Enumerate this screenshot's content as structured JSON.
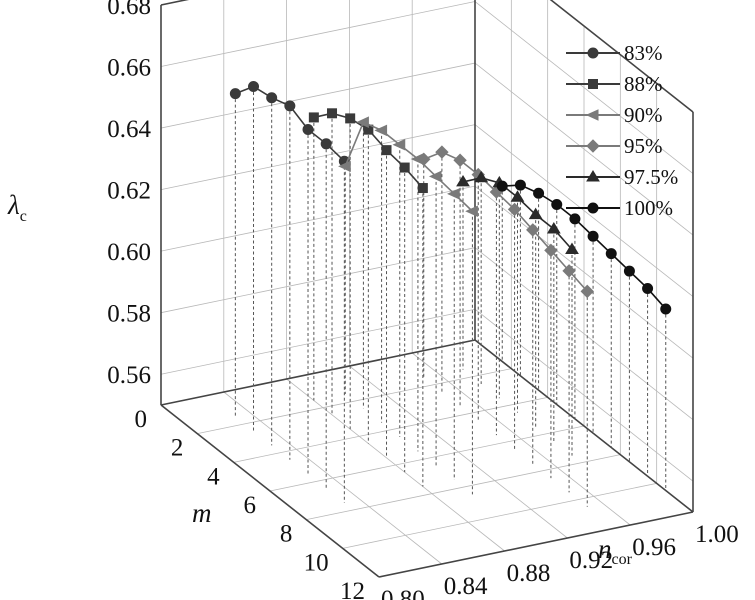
{
  "chart_data": {
    "type": "scatter",
    "subtype": "3d-line",
    "title": "",
    "axes": {
      "z": {
        "label": "λ",
        "label_sub": "c",
        "range": [
          0.55,
          0.68
        ],
        "ticks": [
          "0.56",
          "0.58",
          "0.60",
          "0.62",
          "0.64",
          "0.66",
          "0.68"
        ]
      },
      "m": {
        "label": "m",
        "range": [
          0,
          12
        ],
        "ticks": [
          "0",
          "2",
          "4",
          "6",
          "8",
          "10",
          "12"
        ]
      },
      "n": {
        "label": "n",
        "label_sub": "cor",
        "range": [
          0.8,
          1.0
        ],
        "ticks": [
          "0.80",
          "0.84",
          "0.88",
          "0.92",
          "0.96",
          "1.00"
        ]
      }
    },
    "grid": true,
    "legend_position": "top-right",
    "series": [
      {
        "name": "83%",
        "n": 0.83,
        "marker": "circle",
        "color": "#3a3a3a",
        "m": [
          1.5,
          2.5,
          3.5,
          4.5,
          5.5,
          6.5,
          7.5
        ],
        "values": [
          0.655,
          0.662,
          0.663,
          0.665,
          0.662,
          0.662,
          0.661
        ]
      },
      {
        "name": "88%",
        "n": 0.88,
        "marker": "square",
        "color": "#3a3a3a",
        "m": [
          1.5,
          2.5,
          3.5,
          4.5,
          5.5,
          6.5,
          7.5
        ],
        "values": [
          0.642,
          0.648,
          0.651,
          0.652,
          0.65,
          0.649,
          0.647
        ]
      },
      {
        "name": "90%",
        "n": 0.9,
        "marker": "triangle-left",
        "color": "#7a7a7a",
        "m": [
          1.5,
          2.5,
          3.5,
          4.5,
          5.5,
          6.5,
          7.5,
          8.5
        ],
        "values": [
          0.624,
          0.643,
          0.645,
          0.645,
          0.645,
          0.644,
          0.643,
          0.642
        ]
      },
      {
        "name": "95%",
        "n": 0.95,
        "marker": "diamond",
        "color": "#7a7a7a",
        "m": [
          1.5,
          2.5,
          3.5,
          4.5,
          5.5,
          6.5,
          7.5,
          8.5,
          9.5,
          10.5
        ],
        "values": [
          0.621,
          0.628,
          0.63,
          0.63,
          0.629,
          0.628,
          0.626,
          0.624,
          0.622,
          0.62
        ]
      },
      {
        "name": "97.5%",
        "n": 0.975,
        "marker": "triangle",
        "color": "#2a2a2a",
        "m": [
          1.5,
          2.5,
          3.5,
          4.5,
          5.5,
          6.5,
          7.5
        ],
        "values": [
          0.611,
          0.617,
          0.62,
          0.62,
          0.619,
          0.619,
          0.617
        ]
      },
      {
        "name": "100%",
        "n": 1.0,
        "marker": "circle",
        "color": "#111111",
        "m": [
          1.5,
          2.5,
          3.5,
          4.5,
          5.5,
          6.5,
          7.5,
          8.5,
          9.5,
          10.5
        ],
        "values": [
          0.607,
          0.612,
          0.614,
          0.615,
          0.615,
          0.614,
          0.613,
          0.612,
          0.611,
          0.609
        ]
      }
    ]
  }
}
